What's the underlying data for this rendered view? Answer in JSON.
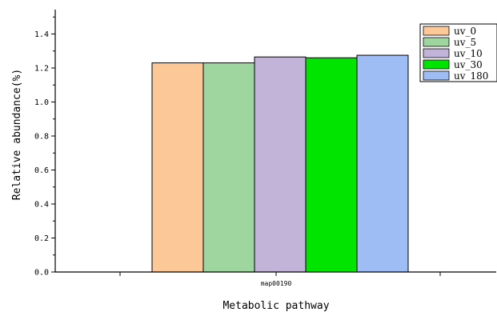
{
  "chart_data": {
    "type": "bar",
    "categories": [
      "map00190"
    ],
    "series": [
      {
        "name": "uv_0",
        "color": "#fdc897",
        "values": [
          1.23
        ]
      },
      {
        "name": "uv_5",
        "color": "#9fd6a0",
        "values": [
          1.23
        ]
      },
      {
        "name": "uv_10",
        "color": "#c2b3d8",
        "values": [
          1.265
        ]
      },
      {
        "name": "uv_30",
        "color": "#00e400",
        "values": [
          1.26
        ]
      },
      {
        "name": "uv_180",
        "color": "#9fbdf5",
        "values": [
          1.275
        ]
      }
    ],
    "xlabel": "Metabolic pathway",
    "ylabel": "Relative abundance(%)",
    "ylim": [
      0,
      1.5
    ],
    "yticks": [
      0.0,
      0.2,
      0.4,
      0.6,
      0.8,
      1.0,
      1.2,
      1.4
    ],
    "ytick_labels": [
      "0.0",
      "0.2",
      "0.4",
      "0.6",
      "0.8",
      "1.0",
      "1.2",
      "1.4"
    ],
    "grid": false,
    "legend_position": "top-right"
  }
}
